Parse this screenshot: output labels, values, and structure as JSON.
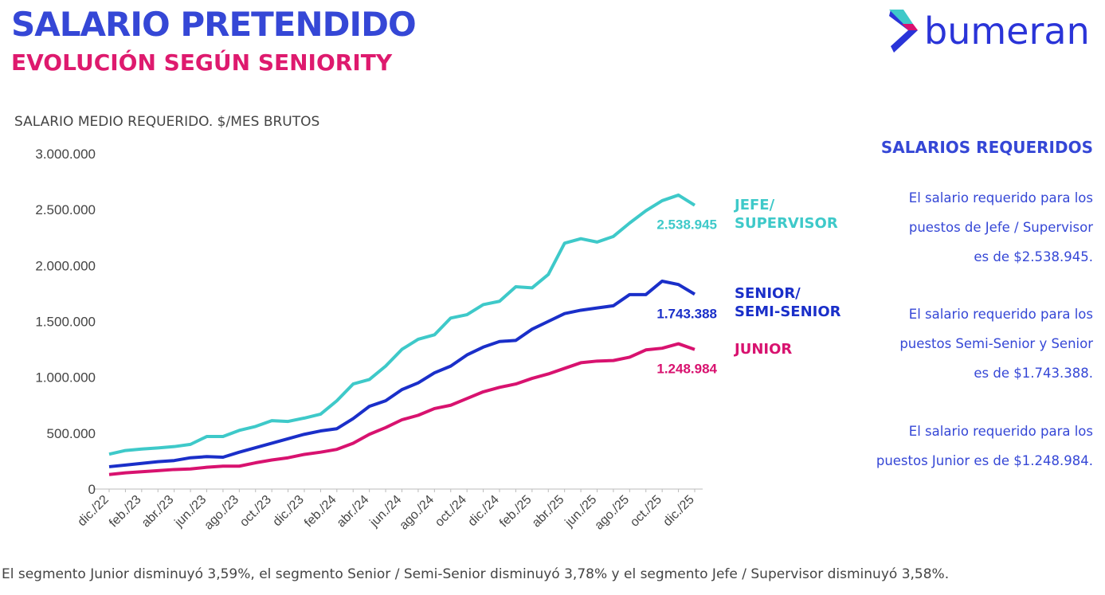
{
  "header": {
    "title": "SALARIO PRETENDIDO",
    "subtitle": "EVOLUCIÓN SEGÚN SENIORITY",
    "logo": "bumeran"
  },
  "chart_data": {
    "type": "line",
    "y_axis_title": "SALARIO MEDIO REQUERIDO. $/MES BRUTOS",
    "categories": [
      "dic./22",
      null,
      "feb./23",
      null,
      "abr./23",
      null,
      "jun./23",
      null,
      "ago./23",
      null,
      "oct./23",
      null,
      "dic./23",
      null,
      "feb./24",
      null,
      "abr./24",
      null,
      "jun./24",
      null,
      "ago./24",
      null,
      "oct./24",
      null,
      "dic./24",
      null,
      "feb./25",
      null,
      "abr./25",
      null,
      "jun./25",
      null,
      "ago./25",
      null,
      "oct./25",
      null,
      "dic./25"
    ],
    "ylim": [
      0,
      3000000
    ],
    "yticks": [
      0,
      {
        "value": 500000,
        "label": "500.000"
      },
      {
        "value": 1000000,
        "label": "1.000.000"
      },
      {
        "value": 1500000,
        "label": "1.500.000"
      },
      {
        "value": 2000000,
        "label": "2.000.000"
      },
      {
        "value": 2500000,
        "label": "2.500.000"
      },
      {
        "value": 3000000,
        "label": "3.000.000"
      }
    ],
    "grid": false,
    "series": [
      {
        "name": "JEFE/\nSUPERVISOR",
        "color": "#3ec9c9",
        "values": [
          312000,
          345000,
          358000,
          368000,
          380000,
          400000,
          470000,
          470000,
          525000,
          560000,
          612000,
          605000,
          635000,
          670000,
          790000,
          940000,
          980000,
          1100000,
          1250000,
          1340000,
          1380000,
          1530000,
          1560000,
          1650000,
          1680000,
          1810000,
          1800000,
          1920000,
          2200000,
          2240000,
          2210000,
          2260000,
          2380000,
          2490000,
          2580000,
          2630000,
          2538945
        ],
        "value_labels": [
          null,
          null,
          null,
          null,
          null,
          null,
          null,
          null,
          null,
          null,
          null,
          null,
          null,
          null,
          null,
          null,
          null,
          null,
          null,
          null,
          null,
          null,
          null,
          null,
          null,
          null,
          null,
          null,
          null,
          null,
          null,
          null,
          null,
          null,
          null,
          null,
          "2.538.945"
        ]
      },
      {
        "name": "SENIOR/\nSEMI-SENIOR",
        "color": "#1a2fc9",
        "values": [
          200000,
          215000,
          230000,
          245000,
          255000,
          280000,
          290000,
          285000,
          330000,
          370000,
          410000,
          450000,
          490000,
          520000,
          540000,
          630000,
          740000,
          790000,
          890000,
          950000,
          1040000,
          1100000,
          1200000,
          1270000,
          1320000,
          1330000,
          1430000,
          1500000,
          1570000,
          1600000,
          1620000,
          1640000,
          1740000,
          1740000,
          1860000,
          1830000,
          1743388
        ],
        "value_labels": [
          null,
          null,
          null,
          null,
          null,
          null,
          null,
          null,
          null,
          null,
          null,
          null,
          null,
          null,
          null,
          null,
          null,
          null,
          null,
          null,
          null,
          null,
          null,
          null,
          null,
          null,
          null,
          null,
          null,
          null,
          null,
          null,
          null,
          null,
          null,
          null,
          "1.743.388"
        ]
      },
      {
        "name": "JUNIOR",
        "color": "#d8126f",
        "values": [
          130000,
          145000,
          155000,
          165000,
          175000,
          180000,
          195000,
          205000,
          205000,
          235000,
          260000,
          280000,
          310000,
          330000,
          355000,
          410000,
          490000,
          550000,
          620000,
          660000,
          720000,
          750000,
          810000,
          870000,
          910000,
          940000,
          990000,
          1030000,
          1080000,
          1130000,
          1145000,
          1150000,
          1180000,
          1245000,
          1260000,
          1300000,
          1248984
        ],
        "value_labels": [
          null,
          null,
          null,
          null,
          null,
          null,
          null,
          null,
          null,
          null,
          null,
          null,
          null,
          null,
          null,
          null,
          null,
          null,
          null,
          null,
          null,
          null,
          null,
          null,
          null,
          null,
          null,
          null,
          null,
          null,
          null,
          null,
          null,
          null,
          null,
          null,
          "1.248.984"
        ]
      }
    ]
  },
  "side_panel": {
    "title": "SALARIOS REQUERIDOS",
    "paragraphs": [
      [
        "El salario requerido para los",
        "puestos de Jefe / Supervisor",
        "es de $2.538.945."
      ],
      [
        "El salario requerido para los",
        "puestos Semi-Senior y Senior",
        "es de $1.743.388."
      ],
      [
        "El salario requerido para los",
        "puestos Junior es de $1.248.984."
      ]
    ]
  },
  "footer": "El segmento Junior disminuyó 3,59%, el segmento Senior / Semi-Senior disminuyó 3,78% y el segmento Jefe / Supervisor disminuyó 3,58%."
}
